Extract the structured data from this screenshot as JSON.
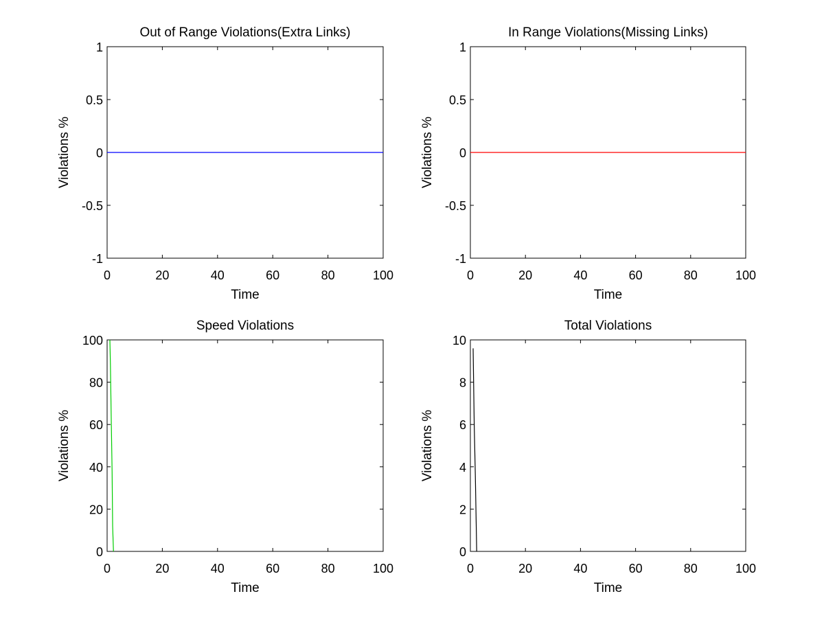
{
  "figure": {
    "background": "#ffffff"
  },
  "chart_data": [
    {
      "type": "line",
      "title": "Out of Range Violations(Extra Links)",
      "xlabel": "Time",
      "ylabel": "Violations %",
      "xlim": [
        0,
        100
      ],
      "ylim": [
        -1,
        1
      ],
      "xticks": [
        0,
        20,
        40,
        60,
        80,
        100
      ],
      "xtick_labels": [
        "0",
        "20",
        "40",
        "60",
        "80",
        "100"
      ],
      "yticks": [
        -1,
        -0.5,
        0,
        0.5,
        1
      ],
      "ytick_labels": [
        "-1",
        "-0.5",
        "0",
        "0.5",
        "1"
      ],
      "grid": false,
      "series": [
        {
          "color": "#0000ff",
          "x": [
            0,
            100
          ],
          "y": [
            0,
            0
          ]
        }
      ]
    },
    {
      "type": "line",
      "title": "In Range Violations(Missing Links)",
      "xlabel": "Time",
      "ylabel": "Violations %",
      "xlim": [
        0,
        100
      ],
      "ylim": [
        -1,
        1
      ],
      "xticks": [
        0,
        20,
        40,
        60,
        80,
        100
      ],
      "xtick_labels": [
        "0",
        "20",
        "40",
        "60",
        "80",
        "100"
      ],
      "yticks": [
        -1,
        -0.5,
        0,
        0.5,
        1
      ],
      "ytick_labels": [
        "-1",
        "-0.5",
        "0",
        "0.5",
        "1"
      ],
      "grid": false,
      "series": [
        {
          "color": "#ff0000",
          "x": [
            0,
            100
          ],
          "y": [
            0,
            0
          ]
        }
      ]
    },
    {
      "type": "line",
      "title": "Speed Violations",
      "xlabel": "Time",
      "ylabel": "Violations %",
      "xlim": [
        0,
        100
      ],
      "ylim": [
        0,
        100
      ],
      "xticks": [
        0,
        20,
        40,
        60,
        80,
        100
      ],
      "xtick_labels": [
        "0",
        "20",
        "40",
        "60",
        "80",
        "100"
      ],
      "yticks": [
        0,
        20,
        40,
        60,
        80,
        100
      ],
      "ytick_labels": [
        "0",
        "20",
        "40",
        "60",
        "80",
        "100"
      ],
      "grid": false,
      "series": [
        {
          "color": "#00cc00",
          "x": [
            1,
            1.2,
            1.5,
            1.8,
            2,
            2.3
          ],
          "y": [
            100,
            88,
            62,
            38,
            12,
            0
          ]
        }
      ]
    },
    {
      "type": "line",
      "title": "Total Violations",
      "xlabel": "Time",
      "ylabel": "Violations %",
      "xlim": [
        0,
        100
      ],
      "ylim": [
        0,
        10
      ],
      "xticks": [
        0,
        20,
        40,
        60,
        80,
        100
      ],
      "xtick_labels": [
        "0",
        "20",
        "40",
        "60",
        "80",
        "100"
      ],
      "yticks": [
        0,
        2,
        4,
        6,
        8,
        10
      ],
      "ytick_labels": [
        "0",
        "2",
        "4",
        "6",
        "8",
        "10"
      ],
      "grid": false,
      "series": [
        {
          "color": "#000000",
          "x": [
            1,
            1.4,
            1.8,
            2.3
          ],
          "y": [
            9.6,
            6,
            3.6,
            0
          ]
        }
      ]
    }
  ]
}
